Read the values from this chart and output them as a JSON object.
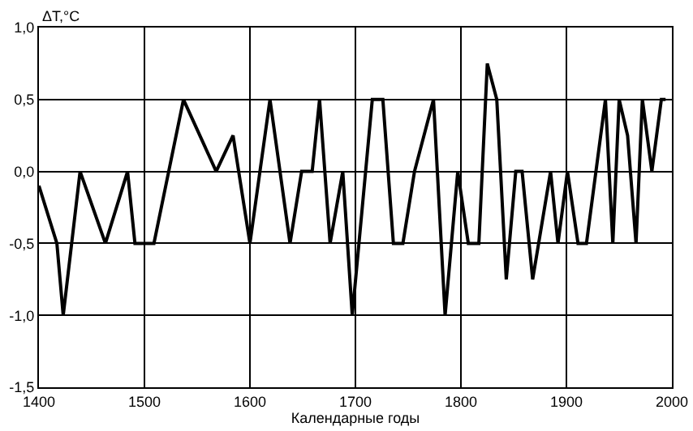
{
  "chart_data": {
    "type": "line",
    "ylabel": "ΔT,°C",
    "xlabel": "Календарные годы",
    "x": [
      1400,
      1417,
      1423,
      1431,
      1439,
      1463,
      1484,
      1491,
      1509,
      1537,
      1568,
      1584,
      1600,
      1619,
      1638,
      1649,
      1659,
      1666,
      1676,
      1688,
      1697,
      1716,
      1726,
      1736,
      1745,
      1756,
      1774,
      1785,
      1797,
      1807,
      1817,
      1825,
      1834,
      1843,
      1852,
      1858,
      1868,
      1885,
      1892,
      1901,
      1911,
      1919,
      1937,
      1944,
      1950,
      1958,
      1966,
      1972,
      1981,
      1990,
      1994
    ],
    "series": [
      {
        "color": "#000000",
        "values": [
          -0.1,
          -0.5,
          -1.0,
          -0.5,
          0,
          -0.5,
          0,
          -0.5,
          -0.5,
          0.5,
          0,
          0.25,
          -0.5,
          0.5,
          -0.5,
          0,
          0,
          0.5,
          -0.5,
          0,
          -1.0,
          0.5,
          0.5,
          -0.5,
          -0.5,
          0,
          0.5,
          -1.0,
          0,
          -0.5,
          -0.5,
          0.75,
          0.5,
          -0.75,
          0,
          0,
          -0.75,
          0,
          -0.5,
          0,
          -0.5,
          -0.5,
          0.5,
          -0.5,
          0.5,
          0.25,
          -0.5,
          0.5,
          0,
          0.5,
          0.5
        ]
      }
    ],
    "xlim": [
      1400,
      2000
    ],
    "xticks": [
      1400,
      1500,
      1600,
      1700,
      1800,
      1900,
      2000
    ],
    "ylim": [
      -1.5,
      1.0
    ],
    "yticks": [
      {
        "value": -1.5,
        "label": "-1,5"
      },
      {
        "value": -1.0,
        "label": "-1,0"
      },
      {
        "value": -0.5,
        "label": "-0,5"
      },
      {
        "value": 0,
        "label": "0,0"
      },
      {
        "value": 0.5,
        "label": "0,5"
      },
      {
        "value": 1.0,
        "label": "1,0"
      }
    ],
    "grid": true,
    "marker": "none",
    "line_style": "solid"
  }
}
